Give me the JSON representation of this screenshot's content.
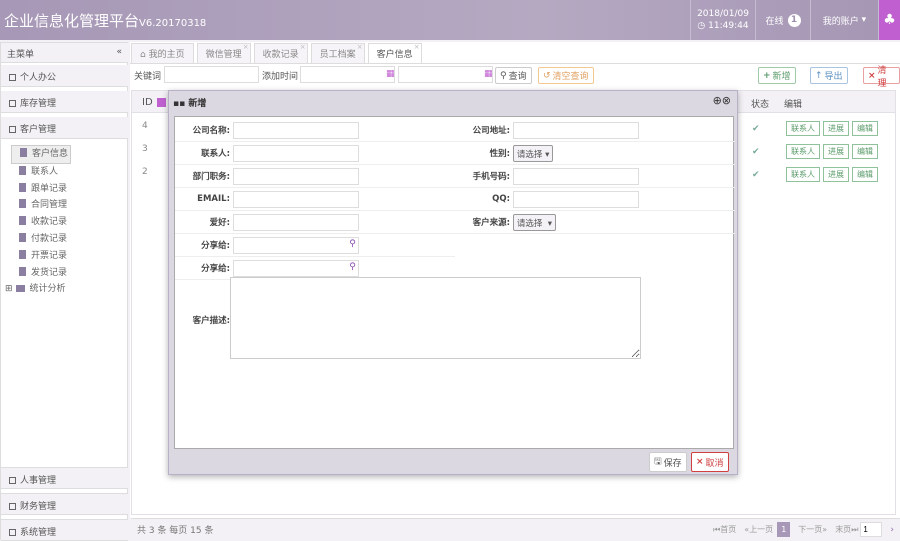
{
  "header": {
    "title": "企业信息化管理平台",
    "version": "V6.20170318",
    "date": "2018/01/09",
    "time": "11:49:44",
    "online_label": "在线",
    "online_count": "1",
    "account_label": "我的账户"
  },
  "sidebar": {
    "title": "主菜单",
    "collapse": "«",
    "top_items": [
      "个人办公",
      "库存管理",
      "客户管理"
    ],
    "tree": [
      "客户信息",
      "联系人",
      "跟单记录",
      "合同管理",
      "收款记录",
      "付款记录",
      "开票记录",
      "发货记录"
    ],
    "tree_folder": "统计分析",
    "bottom_items": [
      "人事管理",
      "财务管理",
      "系统管理"
    ]
  },
  "tabs": [
    "我的主页",
    "微信管理",
    "收款记录",
    "员工档案",
    "客户信息"
  ],
  "toolbar": {
    "keyword_label": "关键词 :",
    "time_label": "添加时间 :",
    "query": "查询",
    "clear_query": "清空查询",
    "add": "新增",
    "export": "导出",
    "clean": "清理"
  },
  "grid": {
    "col_id": "ID",
    "col_status": "状态",
    "col_edit": "编辑",
    "rows": [
      {
        "id": "4"
      },
      {
        "id": "3"
      },
      {
        "id": "2"
      }
    ],
    "row_buttons": [
      "联系人",
      "进展",
      "编辑"
    ]
  },
  "modal": {
    "title": "新增",
    "fields_left": [
      "公司名称:",
      "联系人:",
      "部门职务:",
      "EMAIL:",
      "爱好:",
      "分享给:",
      "分享给:"
    ],
    "fields_right": [
      "公司地址:",
      "性别:",
      "手机号码:",
      "QQ:",
      "客户来源:"
    ],
    "select_placeholder": "请选择",
    "desc_label": "客户描述:",
    "save": "保存",
    "cancel": "取消"
  },
  "pager": {
    "summary": "共 3 条 每页 15 条",
    "first": "首页",
    "prev": "上一页",
    "current": "1",
    "next": "下一页",
    "last": "末页",
    "page_input": "1"
  },
  "colors": {
    "header": "#a698b6",
    "accent": "#c060d0",
    "green": "#5a9b6a",
    "red": "#d04040"
  }
}
